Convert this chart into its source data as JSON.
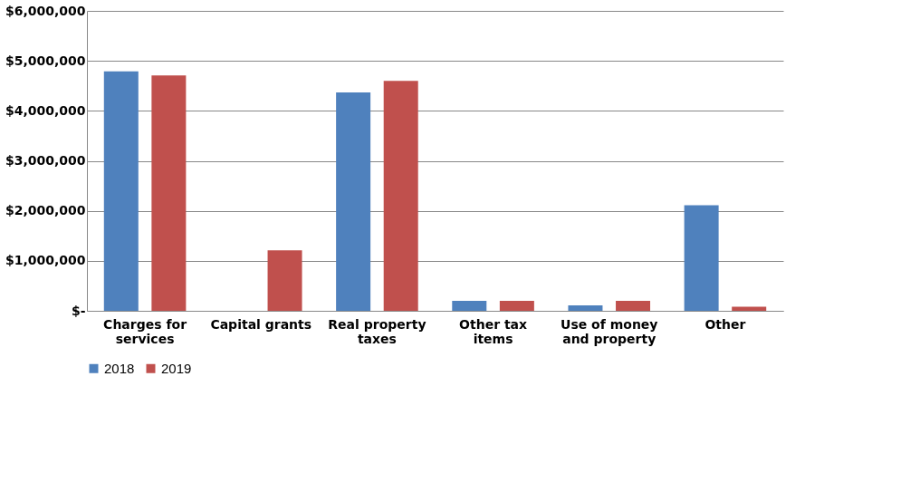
{
  "chart_data": {
    "type": "bar",
    "categories": [
      "Charges for\nservices",
      "Capital grants",
      "Real property\ntaxes",
      "Other tax\nitems",
      "Use of money\nand property",
      "Other"
    ],
    "series": [
      {
        "name": "2018",
        "color": "#4f81bd",
        "values": [
          4790000,
          0,
          4370000,
          200000,
          110000,
          2110000
        ]
      },
      {
        "name": "2019",
        "color": "#c0504d",
        "values": [
          4710000,
          1210000,
          4600000,
          200000,
          200000,
          80000
        ]
      }
    ],
    "ylim": [
      0,
      6000000
    ],
    "yticks": [
      {
        "value": 0,
        "label": "$-"
      },
      {
        "value": 1000000,
        "label": "$1,000,000"
      },
      {
        "value": 2000000,
        "label": "$2,000,000"
      },
      {
        "value": 3000000,
        "label": "$3,000,000"
      },
      {
        "value": 4000000,
        "label": "$4,000,000"
      },
      {
        "value": 5000000,
        "label": "$5,000,000"
      },
      {
        "value": 6000000,
        "label": "$6,000,000"
      }
    ],
    "grid": "y",
    "legend": "bottom"
  }
}
